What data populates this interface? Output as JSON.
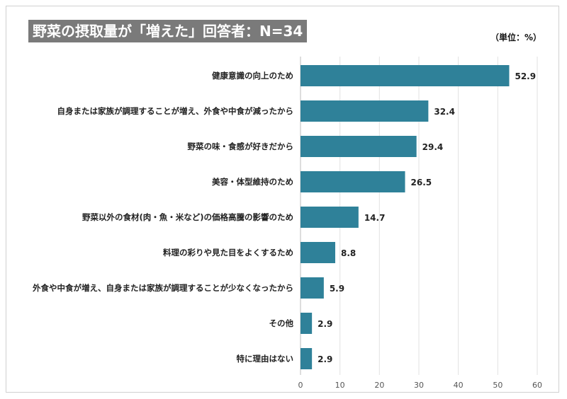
{
  "chart_data": {
    "type": "bar",
    "orientation": "horizontal",
    "title": "野菜の摂取量が「増えた」回答者：N=34",
    "unit_label": "（単位：%）",
    "categories": [
      "健康意識の向上のため",
      "自身または家族が調理することが増え、外食や中食が減ったから",
      "野菜の味・食感が好きだから",
      "美容・体型維持のため",
      "野菜以外の食材(肉・魚・米など)の価格高騰の影響のため",
      "料理の彩りや見た目をよくするため",
      "外食や中食が増え、自身または家族が調理することが少なくなったから",
      "その他",
      "特に理由はない"
    ],
    "values": [
      52.9,
      32.4,
      29.4,
      26.5,
      14.7,
      8.8,
      5.9,
      2.9,
      2.9
    ],
    "xlim": [
      0,
      60
    ],
    "xticks": [
      0,
      10,
      20,
      30,
      40,
      50,
      60
    ],
    "grid": true,
    "bar_color": "#2f8199",
    "legend": "none"
  }
}
